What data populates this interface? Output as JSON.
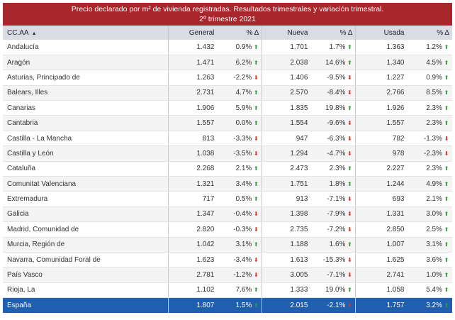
{
  "title": {
    "line1": "Precio declarado por m² de vivienda registradas. Resultados trimestrales y variación trimestral.",
    "line2": "2º trimestre 2021"
  },
  "headers": {
    "region": "CC.AA",
    "general": "General",
    "nueva": "Nueva",
    "usada": "Usada",
    "pct": "% Δ"
  },
  "rows": [
    {
      "name": "Andalucía",
      "general": "1.432",
      "general_pct": "0.9%",
      "general_dir": "up",
      "nueva": "1.701",
      "nueva_pct": "1.7%",
      "nueva_dir": "up",
      "usada": "1.363",
      "usada_pct": "1.2%",
      "usada_dir": "up"
    },
    {
      "name": "Aragón",
      "general": "1.471",
      "general_pct": "6.2%",
      "general_dir": "up",
      "nueva": "2.038",
      "nueva_pct": "14.6%",
      "nueva_dir": "up",
      "usada": "1.340",
      "usada_pct": "4.5%",
      "usada_dir": "up"
    },
    {
      "name": "Asturias, Principado de",
      "general": "1.263",
      "general_pct": "-2.2%",
      "general_dir": "down",
      "nueva": "1.406",
      "nueva_pct": "-9.5%",
      "nueva_dir": "down",
      "usada": "1.227",
      "usada_pct": "0.9%",
      "usada_dir": "up"
    },
    {
      "name": "Balears, Illes",
      "general": "2.731",
      "general_pct": "4.7%",
      "general_dir": "up",
      "nueva": "2.570",
      "nueva_pct": "-8.4%",
      "nueva_dir": "down",
      "usada": "2.766",
      "usada_pct": "8.5%",
      "usada_dir": "up"
    },
    {
      "name": "Canarias",
      "general": "1.906",
      "general_pct": "5.9%",
      "general_dir": "up",
      "nueva": "1.835",
      "nueva_pct": "19.8%",
      "nueva_dir": "up",
      "usada": "1.926",
      "usada_pct": "2.3%",
      "usada_dir": "up"
    },
    {
      "name": "Cantabria",
      "general": "1.557",
      "general_pct": "0.0%",
      "general_dir": "up",
      "nueva": "1.554",
      "nueva_pct": "-9.6%",
      "nueva_dir": "down",
      "usada": "1.557",
      "usada_pct": "2.3%",
      "usada_dir": "up"
    },
    {
      "name": "Castilla - La Mancha",
      "general": "813",
      "general_pct": "-3.3%",
      "general_dir": "down",
      "nueva": "947",
      "nueva_pct": "-6.3%",
      "nueva_dir": "down",
      "usada": "782",
      "usada_pct": "-1.3%",
      "usada_dir": "down"
    },
    {
      "name": "Castilla y León",
      "general": "1.038",
      "general_pct": "-3.5%",
      "general_dir": "down",
      "nueva": "1.294",
      "nueva_pct": "-4.7%",
      "nueva_dir": "down",
      "usada": "978",
      "usada_pct": "-2.3%",
      "usada_dir": "down"
    },
    {
      "name": "Cataluña",
      "general": "2.268",
      "general_pct": "2.1%",
      "general_dir": "up",
      "nueva": "2.473",
      "nueva_pct": "2.3%",
      "nueva_dir": "up",
      "usada": "2.227",
      "usada_pct": "2.3%",
      "usada_dir": "up"
    },
    {
      "name": "Comunitat Valenciana",
      "general": "1.321",
      "general_pct": "3.4%",
      "general_dir": "up",
      "nueva": "1.751",
      "nueva_pct": "1.8%",
      "nueva_dir": "up",
      "usada": "1.244",
      "usada_pct": "4.9%",
      "usada_dir": "up"
    },
    {
      "name": "Extremadura",
      "general": "717",
      "general_pct": "0.5%",
      "general_dir": "up",
      "nueva": "913",
      "nueva_pct": "-7.1%",
      "nueva_dir": "down",
      "usada": "693",
      "usada_pct": "2.1%",
      "usada_dir": "up"
    },
    {
      "name": "Galicia",
      "general": "1.347",
      "general_pct": "-0.4%",
      "general_dir": "down",
      "nueva": "1.398",
      "nueva_pct": "-7.9%",
      "nueva_dir": "down",
      "usada": "1.331",
      "usada_pct": "3.0%",
      "usada_dir": "up"
    },
    {
      "name": "Madrid, Comunidad de",
      "general": "2.820",
      "general_pct": "-0.3%",
      "general_dir": "down",
      "nueva": "2.735",
      "nueva_pct": "-7.2%",
      "nueva_dir": "down",
      "usada": "2.850",
      "usada_pct": "2.5%",
      "usada_dir": "up"
    },
    {
      "name": "Murcia, Región de",
      "general": "1.042",
      "general_pct": "3.1%",
      "general_dir": "up",
      "nueva": "1.188",
      "nueva_pct": "1.6%",
      "nueva_dir": "up",
      "usada": "1.007",
      "usada_pct": "3.1%",
      "usada_dir": "up"
    },
    {
      "name": "Navarra, Comunidad Foral de",
      "general": "1.623",
      "general_pct": "-3.4%",
      "general_dir": "down",
      "nueva": "1.613",
      "nueva_pct": "-15.3%",
      "nueva_dir": "down",
      "usada": "1.625",
      "usada_pct": "3.6%",
      "usada_dir": "up"
    },
    {
      "name": "País Vasco",
      "general": "2.781",
      "general_pct": "-1.2%",
      "general_dir": "down",
      "nueva": "3.005",
      "nueva_pct": "-7.1%",
      "nueva_dir": "down",
      "usada": "2.741",
      "usada_pct": "1.0%",
      "usada_dir": "up"
    },
    {
      "name": "Rioja, La",
      "general": "1.102",
      "general_pct": "7.6%",
      "general_dir": "up",
      "nueva": "1.333",
      "nueva_pct": "19.0%",
      "nueva_dir": "up",
      "usada": "1.058",
      "usada_pct": "5.4%",
      "usada_dir": "up"
    }
  ],
  "total": {
    "name": "España",
    "general": "1.807",
    "general_pct": "1.5%",
    "general_dir": "up",
    "nueva": "2.015",
    "nueva_pct": "-2.1%",
    "nueva_dir": "down",
    "usada": "1.757",
    "usada_pct": "3.2%",
    "usada_dir": "up"
  },
  "colors": {
    "title_bg": "#a8272d",
    "total_bg": "#1f5fae",
    "up": "#2e9e3c",
    "down": "#d9302c"
  },
  "icons": {
    "up": "arrow-up-icon",
    "down": "arrow-down-icon",
    "sort": "sort-ascending-icon"
  }
}
